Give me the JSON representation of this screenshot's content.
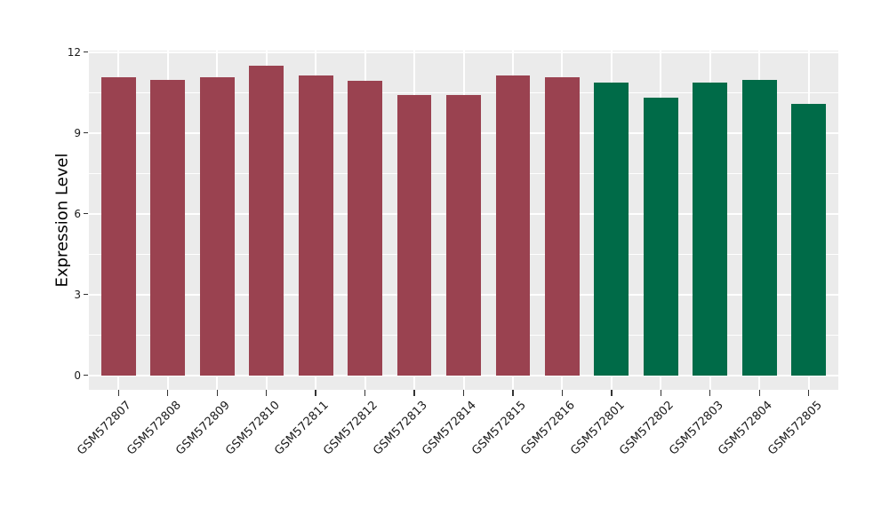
{
  "figure": {
    "background": "#FFFFFF",
    "panel_background": "#EBEBEB",
    "grid_color": "#FFFFFF",
    "tick_mark_color": "#333333",
    "axis_text_color": "#1A1A1A"
  },
  "chart_data": {
    "type": "bar",
    "title": "",
    "xlabel": "",
    "ylabel": "Expression Level",
    "ylim": [
      0,
      12
    ],
    "yticks": [
      0,
      3,
      6,
      9,
      12
    ],
    "yticks_minor": [
      1.5,
      4.5,
      7.5,
      10.5
    ],
    "grid": true,
    "legend_position": "none",
    "categories": [
      "GSM572807",
      "GSM572808",
      "GSM572809",
      "GSM572810",
      "GSM572811",
      "GSM572812",
      "GSM572813",
      "GSM572814",
      "GSM572815",
      "GSM572816",
      "GSM572801",
      "GSM572802",
      "GSM572803",
      "GSM572804",
      "GSM572805"
    ],
    "values": [
      11.07,
      10.97,
      11.07,
      11.49,
      11.15,
      10.95,
      10.4,
      10.41,
      11.15,
      11.07,
      10.87,
      10.3,
      10.87,
      10.96,
      10.09
    ],
    "bar_colors": [
      "#9A4250",
      "#9A4250",
      "#9A4250",
      "#9A4250",
      "#9A4250",
      "#9A4250",
      "#9A4250",
      "#9A4250",
      "#9A4250",
      "#9A4250",
      "#006B48",
      "#006B48",
      "#006B48",
      "#006B48",
      "#006B48"
    ]
  }
}
